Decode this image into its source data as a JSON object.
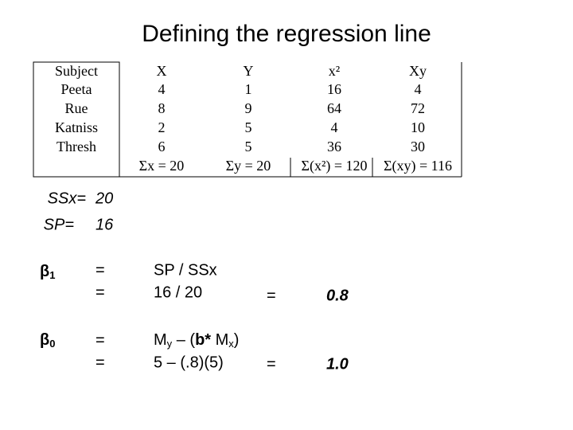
{
  "title": "Defining the regression line",
  "table": {
    "header": [
      "Subject",
      "X",
      "Y",
      "x²",
      "Xy"
    ],
    "rows": [
      [
        "Peeta",
        "4",
        "1",
        "16",
        "4"
      ],
      [
        "Rue",
        "8",
        "9",
        "64",
        "72"
      ],
      [
        "Katniss",
        "2",
        "5",
        "4",
        "10"
      ],
      [
        "Thresh",
        "6",
        "5",
        "36",
        "30"
      ]
    ],
    "sums": [
      "Σx = 20",
      "Σy = 20",
      "Σ(x²) = 120",
      "Σ(xy) = 116"
    ]
  },
  "summary": {
    "ssx_label": "SSx=",
    "ssx_value": "20",
    "sp_label": "SP=",
    "sp_value": "16"
  },
  "beta1": {
    "symbol": "β",
    "sub": "1",
    "eq1": "=",
    "eq2": "=",
    "formula": "SP / SSx",
    "substitution": "16 / 20",
    "eq3": "=",
    "result": "0.8"
  },
  "beta0": {
    "symbol": "β",
    "sub": "0",
    "eq1": "=",
    "eq2": "=",
    "formula": [
      "M",
      "y",
      " – (",
      "b*",
      " M",
      "x",
      ")"
    ],
    "substitution": "5 – (.8)(5)",
    "eq3": "=",
    "result": "1.0"
  }
}
